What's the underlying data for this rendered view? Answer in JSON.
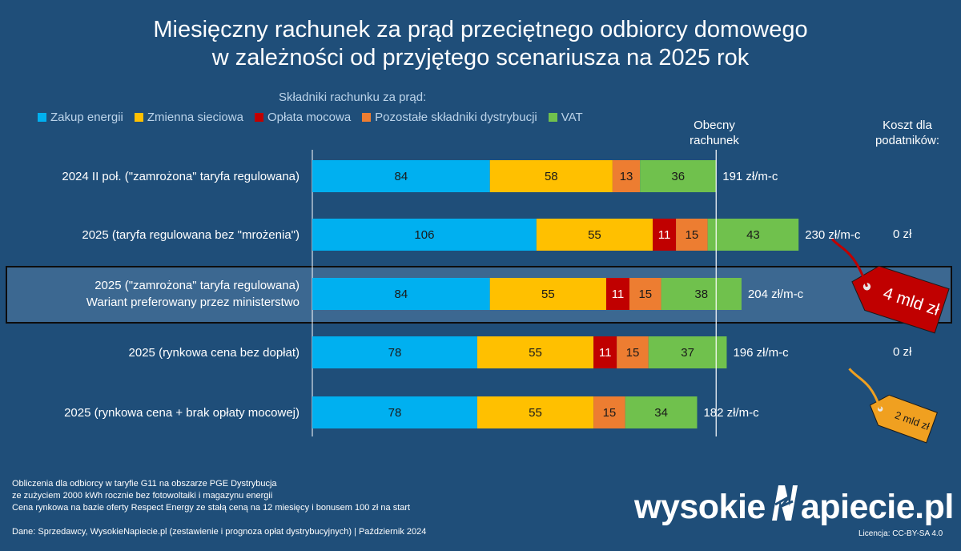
{
  "title_line1": "Miesięczny rachunek za prąd przeciętnego odbiorcy domowego",
  "title_line2": "w zależności od przyjętego scenariusza na 2025 rok",
  "legend_title": "Składniki rachunku za prąd:",
  "col_current_line1": "Obecny",
  "col_current_line2": "rachunek",
  "col_cost_line1": "Koszt dla",
  "col_cost_line2": "podatników:",
  "chart_data": {
    "type": "bar",
    "orientation": "horizontal",
    "stacked": true,
    "series": [
      {
        "name": "Zakup energii",
        "color": "#00b0f0"
      },
      {
        "name": "Zmienna sieciowa",
        "color": "#ffc000"
      },
      {
        "name": "Opłata mocowa",
        "color": "#c00000"
      },
      {
        "name": "Pozostałe składniki dystrybucji",
        "color": "#ed7d31"
      },
      {
        "name": "VAT",
        "color": "#70c14d"
      }
    ],
    "rows": [
      {
        "label_line1": "2024 II poł. (\"zamrożona\" taryfa regulowana)",
        "label_line2": "",
        "values": [
          84,
          58,
          0,
          13,
          36
        ],
        "total_label": "191 zł/m-c",
        "taxpayer_cost": ""
      },
      {
        "label_line1": "2025 (taryfa regulowana bez \"mrożenia\")",
        "label_line2": "",
        "values": [
          106,
          55,
          11,
          15,
          43
        ],
        "total_label": "230 zł/m-c",
        "taxpayer_cost": "0 zł"
      },
      {
        "label_line1": "2025 (\"zamrożona\" taryfa regulowana)",
        "label_line2": "Wariant preferowany przez ministerstwo",
        "values": [
          84,
          55,
          11,
          15,
          38
        ],
        "total_label": "204 zł/m-c",
        "taxpayer_cost": "4 mld zł",
        "highlight": true
      },
      {
        "label_line1": "2025 (rynkowa cena bez dopłat)",
        "label_line2": "",
        "values": [
          78,
          55,
          11,
          15,
          37
        ],
        "total_label": "196 zł/m-c",
        "taxpayer_cost": "0 zł"
      },
      {
        "label_line1": "2025 (rynkowa cena + brak opłaty mocowej)",
        "label_line2": "",
        "values": [
          78,
          55,
          0,
          15,
          34
        ],
        "total_label": "182 zł/m-c",
        "taxpayer_cost": "2 mld zł"
      }
    ],
    "reference_line": {
      "value": 191,
      "label": "Obecny rachunek"
    }
  },
  "footnotes": [
    "Obliczenia dla odbiorcy w taryfie G11 na obszarze PGE Dystrybucja",
    "ze zużyciem 2000 kWh rocznie bez fotowoltaiki i magazynu energii",
    "Cena rynkowa na bazie oferty Respect Energy ze stałą ceną na 12 miesięcy i bonusem 100 zł na start"
  ],
  "source": "Dane: Sprzedawcy, WysokieNapiecie.pl (zestawienie i prognoza opłat dystrybucyjnych)  |  Październik 2024",
  "logo_part1": "wysokie",
  "logo_part2": "N",
  "logo_part3": "apiecie.pl",
  "license": "Licencja: CC-BY-SA 4.0",
  "tag_color_red": "#c00000",
  "tag_color_orange": "#f0a020"
}
